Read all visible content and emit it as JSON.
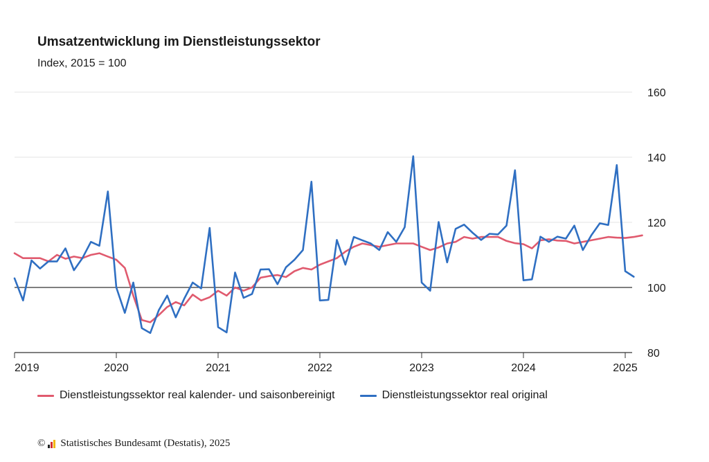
{
  "colors": {
    "real_adjusted": "#e05a6e",
    "real_original": "#2f6fc2",
    "grid": "#e3e3e3",
    "baseline": "#333333"
  },
  "chart_data": {
    "type": "line",
    "title": "Umsatzentwicklung im Dienstleistungssektor",
    "subtitle": "Index, 2015 = 100",
    "x_start": "2019-01",
    "x_labels": [
      "2019",
      "2020",
      "2021",
      "2022",
      "2023",
      "2024",
      "2025"
    ],
    "ylim": [
      80,
      160
    ],
    "y_ticks": [
      "80",
      "100",
      "120",
      "140",
      "160"
    ],
    "baseline": 100,
    "grid": true,
    "legend_position": "bottom",
    "series": [
      {
        "name": "Dienstleistungssektor real kalender- und saisonbereinigt",
        "key": "real_adjusted",
        "values": [
          110.5,
          109,
          109,
          109,
          108,
          110,
          108.8,
          109.5,
          109,
          110,
          110.5,
          109.5,
          108.5,
          106,
          97.5,
          90,
          89.3,
          91.5,
          94,
          95.5,
          94.5,
          97.8,
          96,
          97,
          99,
          97.5,
          100,
          99,
          100,
          103,
          103.5,
          103.8,
          103.2,
          105,
          106,
          105.5,
          107,
          108,
          109,
          111,
          112.5,
          113.5,
          113,
          112.5,
          113,
          113.5,
          113.5,
          113.5,
          112.5,
          111.5,
          112.3,
          113.5,
          114,
          115.5,
          115,
          115.5,
          115.5,
          115.5,
          114.3,
          113.6,
          113.3,
          112,
          114.5,
          114.8,
          114.4,
          114.3,
          113.5,
          114,
          114.5,
          115,
          115.5,
          115.3,
          115.2,
          115.5,
          116
        ]
      },
      {
        "name": "Dienstleistungssektor real original",
        "key": "real_original",
        "values": [
          102.8,
          96,
          108.3,
          105.8,
          108,
          108,
          112,
          105.3,
          109,
          114,
          112.8,
          129.5,
          100,
          92.2,
          101.5,
          87.5,
          86,
          93,
          97.5,
          90.8,
          96.5,
          101.5,
          99.7,
          118.3,
          87.8,
          86.2,
          104.6,
          96.8,
          98,
          105.5,
          105.6,
          101,
          106.2,
          108.5,
          111.5,
          132.5,
          96,
          96.2,
          114.6,
          107,
          115.5,
          114.5,
          113.5,
          111.5,
          117,
          114,
          118.5,
          140.3,
          101.5,
          99,
          120.1,
          107.7,
          118,
          119.3,
          116.8,
          114.6,
          116.5,
          116.3,
          119,
          136,
          102.2,
          102.5,
          115.6,
          114,
          115.6,
          115,
          119,
          111.5,
          116,
          119.7,
          119.2,
          137.6,
          105,
          103.3
        ]
      }
    ]
  },
  "footer": {
    "copyright": "©",
    "source": "Statistisches Bundesamt (Destatis), 2025"
  }
}
